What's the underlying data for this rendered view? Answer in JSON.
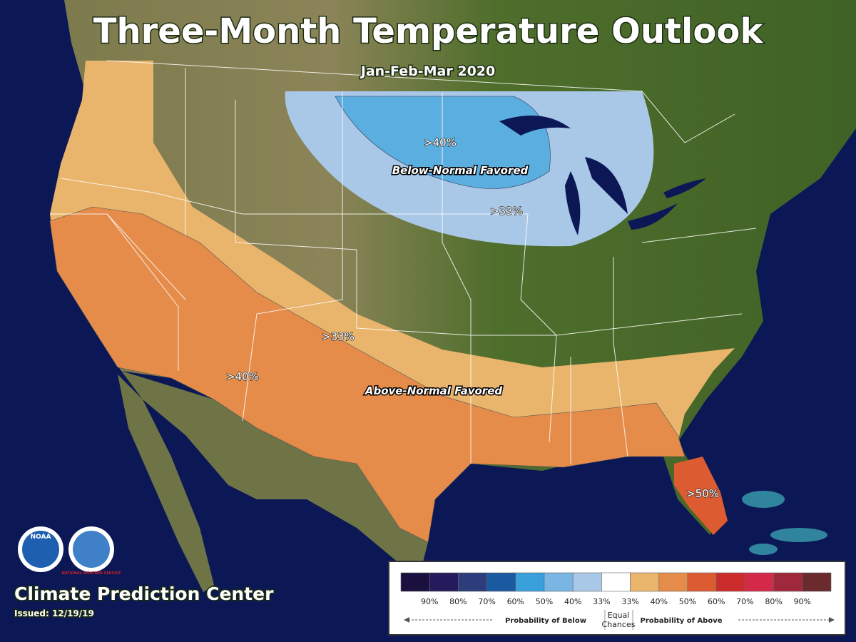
{
  "header": {
    "title": "Three-Month Temperature Outlook",
    "subtitle": "Jan-Feb-Mar 2020"
  },
  "map_labels": {
    "below_inner": ">40%",
    "below_name": "Below-Normal Favored",
    "below_outer": ">33%",
    "above_outer": ">33%",
    "above_inner": ">40%",
    "above_name": "Above-Normal Favored",
    "above_core": ">50%"
  },
  "legend": {
    "colors": [
      "#1a1040",
      "#241a5c",
      "#2b3d7a",
      "#1a5aa0",
      "#3aa0dc",
      "#7ab6e4",
      "#a9c8e8",
      "#ffffff",
      "#e9b46c",
      "#e58c4a",
      "#dc5b30",
      "#cc2c2c",
      "#d42a4a",
      "#a0283c",
      "#6a2a2e"
    ],
    "ticks": [
      "90%",
      "80%",
      "70%",
      "60%",
      "50%",
      "40%",
      "33%",
      "33%",
      "40%",
      "50%",
      "60%",
      "70%",
      "80%",
      "90%"
    ],
    "below": "Probability of Below",
    "equal": [
      "Equal",
      "Chances"
    ],
    "above": "Probability of Above"
  },
  "footer": {
    "agency": "Climate Prediction Center",
    "issued": "Issued: 12/19/19",
    "logos": [
      "NOAA",
      "NATIONAL WEATHER SERVICE"
    ]
  }
}
